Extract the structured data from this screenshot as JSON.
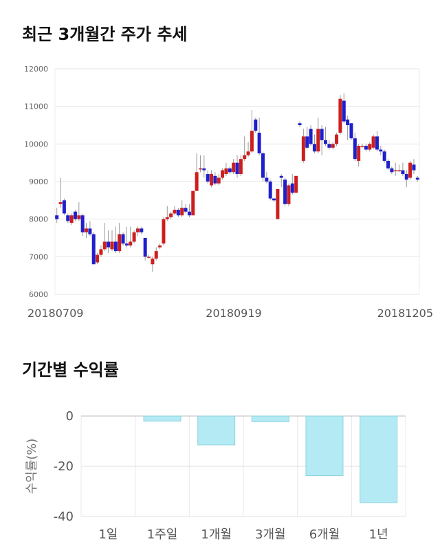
{
  "section1": {
    "title": "최근 3개월간 주가 추세"
  },
  "section2": {
    "title": "기간별 수익률"
  },
  "chart_data": [
    {
      "type": "candlestick",
      "title": "최근 3개월간 주가 추세",
      "ylim": [
        6000,
        12000
      ],
      "yticks": [
        6000,
        7000,
        8000,
        9000,
        10000,
        11000,
        12000
      ],
      "xtick_labels": [
        "20180709",
        "20180919",
        "20181205"
      ],
      "grid": true,
      "colors": {
        "up": "#cc1f1f",
        "down": "#1f1fcc",
        "wick": "#999999"
      },
      "candles": [
        [
          8100,
          8000,
          8300,
          7900
        ],
        [
          8400,
          8450,
          9100,
          8300
        ],
        [
          8500,
          8150,
          8550,
          8100
        ],
        [
          8100,
          7950,
          8150,
          7900
        ],
        [
          7900,
          8100,
          8150,
          7850
        ],
        [
          8200,
          8000,
          8250,
          7950
        ],
        [
          8000,
          8100,
          8450,
          7950
        ],
        [
          8100,
          7650,
          8150,
          7550
        ],
        [
          7650,
          7750,
          7900,
          7500
        ],
        [
          7750,
          7600,
          7950,
          7550
        ],
        [
          7600,
          6800,
          7650,
          6800
        ],
        [
          6850,
          7050,
          7100,
          6800
        ],
        [
          7050,
          7200,
          7300,
          7000
        ],
        [
          7200,
          7400,
          7900,
          7150
        ],
        [
          7400,
          7250,
          7700,
          7100
        ],
        [
          7200,
          7400,
          7700,
          7150
        ],
        [
          7400,
          7150,
          7800,
          7100
        ],
        [
          7150,
          7600,
          7900,
          7100
        ],
        [
          7600,
          7350,
          7650,
          7300
        ],
        [
          7350,
          7300,
          7800,
          7250
        ],
        [
          7300,
          7400,
          7800,
          7250
        ],
        [
          7400,
          7650,
          7700,
          7350
        ],
        [
          7650,
          7750,
          7800,
          7550
        ],
        [
          7750,
          7650,
          7800,
          7600
        ],
        [
          7500,
          7000,
          7500,
          6900
        ],
        [
          7000,
          7000,
          7050,
          6950
        ],
        [
          6800,
          6950,
          7000,
          6600
        ],
        [
          6950,
          7150,
          7250,
          6900
        ],
        [
          7250,
          7300,
          7350,
          7200
        ],
        [
          7350,
          8000,
          8050,
          7300
        ],
        [
          8000,
          8050,
          8350,
          7950
        ],
        [
          8050,
          8150,
          8200,
          8000
        ],
        [
          8150,
          8250,
          8350,
          8100
        ],
        [
          8250,
          8100,
          8300,
          8050
        ],
        [
          8100,
          8300,
          8500,
          8050
        ],
        [
          8300,
          8200,
          8400,
          8150
        ],
        [
          8200,
          8100,
          8400,
          8050
        ],
        [
          8100,
          8750,
          8750,
          8100
        ],
        [
          8750,
          9250,
          9750,
          8750
        ],
        [
          9350,
          9350,
          9700,
          9250
        ],
        [
          9350,
          9300,
          9700,
          9100
        ],
        [
          9200,
          9000,
          9300,
          8950
        ],
        [
          8900,
          9200,
          9300,
          8850
        ],
        [
          9150,
          8950,
          9250,
          8900
        ],
        [
          8950,
          9100,
          9200,
          8900
        ],
        [
          9100,
          9300,
          9350,
          9050
        ],
        [
          9200,
          9350,
          9500,
          9150
        ],
        [
          9350,
          9250,
          9400,
          9200
        ],
        [
          9250,
          9500,
          9600,
          9200
        ],
        [
          9500,
          9200,
          9700,
          9100
        ],
        [
          9200,
          9600,
          9700,
          9150
        ],
        [
          9600,
          9700,
          10200,
          9550
        ],
        [
          9700,
          9800,
          10050,
          9650
        ],
        [
          9800,
          10350,
          10900,
          9750
        ],
        [
          10650,
          10350,
          10700,
          10300
        ],
        [
          10300,
          9750,
          10700,
          9700
        ],
        [
          9750,
          9100,
          9800,
          9000
        ],
        [
          9100,
          9000,
          9250,
          8950
        ],
        [
          9000,
          8550,
          9050,
          8500
        ],
        [
          8550,
          8500,
          8550,
          8450
        ],
        [
          8000,
          8800,
          8800,
          8000
        ],
        [
          9150,
          9100,
          9200,
          8850
        ],
        [
          9050,
          8400,
          9100,
          8350
        ],
        [
          8400,
          8900,
          8950,
          8350
        ],
        [
          8950,
          8700,
          9200,
          8650
        ],
        [
          8700,
          9150,
          9150,
          8700
        ],
        [
          10550,
          10500,
          10600,
          10450
        ],
        [
          9550,
          10200,
          10400,
          9500
        ],
        [
          10200,
          9900,
          10450,
          9850
        ],
        [
          10400,
          10000,
          10500,
          9950
        ],
        [
          10000,
          9800,
          10250,
          9750
        ],
        [
          9800,
          10400,
          10700,
          9750
        ],
        [
          10400,
          10100,
          10500,
          9700
        ],
        [
          10100,
          10000,
          10450,
          9950
        ],
        [
          10000,
          9900,
          10100,
          9850
        ],
        [
          9900,
          10000,
          10050,
          9850
        ],
        [
          10000,
          10250,
          10300,
          9950
        ],
        [
          10300,
          11200,
          11300,
          10250
        ],
        [
          11150,
          10600,
          11350,
          10550
        ],
        [
          10650,
          10500,
          10750,
          10100
        ],
        [
          10550,
          10150,
          10550,
          10100
        ],
        [
          10150,
          9600,
          10300,
          9550
        ],
        [
          9550,
          9950,
          10000,
          9400
        ],
        [
          9950,
          9950,
          10000,
          9900
        ],
        [
          9950,
          9850,
          10000,
          9800
        ],
        [
          9850,
          10000,
          10050,
          9800
        ],
        [
          9900,
          10200,
          10250,
          9850
        ],
        [
          10200,
          9850,
          10350,
          9800
        ],
        [
          9850,
          9800,
          9950,
          9700
        ],
        [
          9800,
          9550,
          9850,
          9500
        ],
        [
          9550,
          9350,
          9600,
          9300
        ],
        [
          9350,
          9250,
          9400,
          9200
        ],
        [
          9300,
          9300,
          9500,
          9150
        ],
        [
          9300,
          9300,
          9450,
          9250
        ],
        [
          9300,
          9200,
          9500,
          9150
        ],
        [
          9200,
          9050,
          9300,
          8850
        ],
        [
          9100,
          9500,
          9550,
          9050
        ],
        [
          9450,
          9300,
          9600,
          9200
        ],
        [
          9100,
          9050,
          9150,
          9000
        ]
      ]
    },
    {
      "type": "bar",
      "title": "기간별 수익률",
      "ylabel": "수익률(%)",
      "ylim": [
        -40,
        0
      ],
      "yticks": [
        0,
        -20,
        -40
      ],
      "categories": [
        "1일",
        "1주일",
        "1개월",
        "3개월",
        "6개월",
        "1년"
      ],
      "values": [
        0,
        -2.0,
        -11.5,
        -2.3,
        -23.7,
        -34.5
      ],
      "colors": {
        "fill": "#b3eaf4",
        "stroke": "#8fd3e0"
      },
      "grid": true
    }
  ]
}
